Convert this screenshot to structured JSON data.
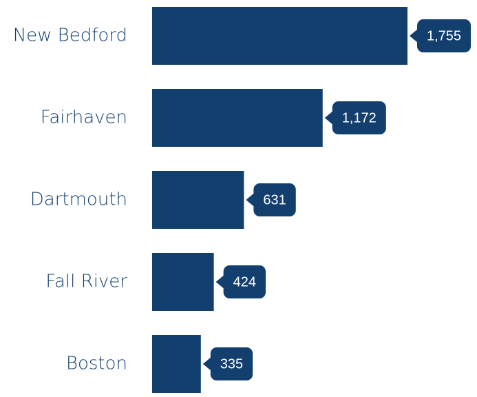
{
  "chart_data": {
    "type": "bar",
    "orientation": "horizontal",
    "categories": [
      "New Bedford",
      "Fairhaven",
      "Dartmouth",
      "Fall River",
      "Boston"
    ],
    "values": [
      1755,
      1172,
      631,
      424,
      335
    ],
    "value_labels": [
      "1,755",
      "1,172",
      "631",
      "424",
      "335"
    ],
    "color": "#123f6e"
  }
}
